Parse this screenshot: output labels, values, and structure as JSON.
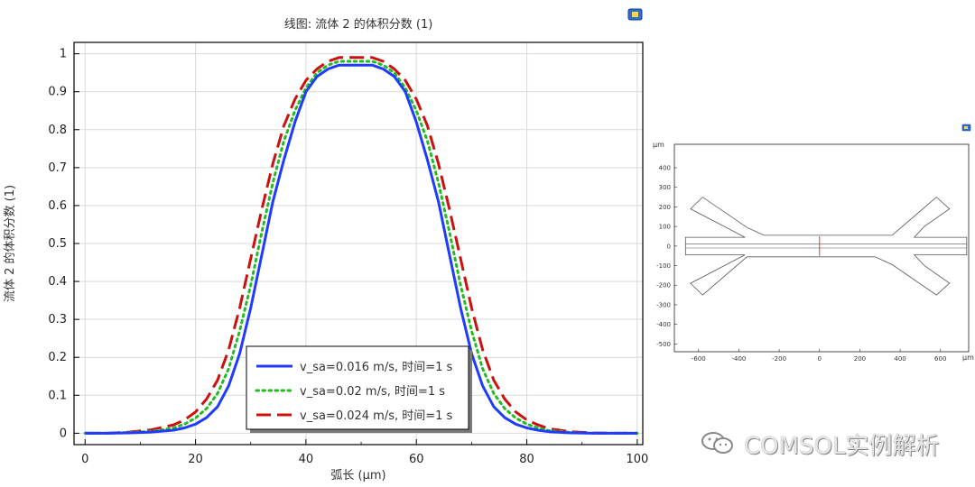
{
  "main_plot": {
    "title": "线图: 流体 2 的体积分数 (1)",
    "icon": "comsol-plot-icon"
  },
  "chart_data": [
    {
      "type": "line",
      "title": "线图: 流体 2 的体积分数 (1)",
      "xlabel": "弧长 (μm)",
      "ylabel": "流体 2 的体积分数 (1)",
      "xlim": [
        -2,
        101
      ],
      "ylim": [
        -0.03,
        1.03
      ],
      "xticks": [
        0,
        20,
        40,
        60,
        80,
        100
      ],
      "yticks": [
        0,
        0.1,
        0.2,
        0.3,
        0.4,
        0.5,
        0.6,
        0.7,
        0.8,
        0.9,
        1
      ],
      "grid": true,
      "legend_position": "bottom-center",
      "x": [
        0,
        4,
        8,
        12,
        16,
        18,
        20,
        22,
        24,
        26,
        28,
        30,
        32,
        34,
        36,
        38,
        40,
        42,
        44,
        46,
        48,
        50,
        52,
        54,
        56,
        58,
        60,
        62,
        64,
        66,
        68,
        70,
        72,
        74,
        76,
        78,
        80,
        82,
        84,
        88,
        92,
        96,
        100
      ],
      "series": [
        {
          "name": "v_sa=0.016 m/s, 时间=1 s",
          "color": "#1f3bff",
          "style": "solid",
          "values": [
            0,
            0,
            0.001,
            0.003,
            0.008,
            0.014,
            0.024,
            0.041,
            0.07,
            0.125,
            0.21,
            0.33,
            0.47,
            0.61,
            0.72,
            0.82,
            0.9,
            0.94,
            0.96,
            0.97,
            0.97,
            0.97,
            0.97,
            0.96,
            0.94,
            0.9,
            0.82,
            0.72,
            0.61,
            0.47,
            0.33,
            0.21,
            0.125,
            0.07,
            0.041,
            0.024,
            0.014,
            0.008,
            0.004,
            0.001,
            0,
            0,
            0
          ]
        },
        {
          "name": "v_sa=0.02 m/s, 时间=1 s",
          "color": "#22bb22",
          "style": "dotted",
          "values": [
            0,
            0,
            0.002,
            0.005,
            0.014,
            0.024,
            0.04,
            0.065,
            0.105,
            0.17,
            0.27,
            0.39,
            0.53,
            0.66,
            0.77,
            0.85,
            0.91,
            0.95,
            0.97,
            0.98,
            0.98,
            0.98,
            0.98,
            0.97,
            0.95,
            0.91,
            0.85,
            0.77,
            0.66,
            0.53,
            0.39,
            0.27,
            0.17,
            0.105,
            0.065,
            0.04,
            0.024,
            0.014,
            0.007,
            0.002,
            0,
            0,
            0
          ]
        },
        {
          "name": "v_sa=0.024 m/s, 时间=1 s",
          "color": "#cc1111",
          "style": "dashed",
          "values": [
            0,
            0,
            0.003,
            0.009,
            0.022,
            0.035,
            0.056,
            0.09,
            0.14,
            0.22,
            0.33,
            0.46,
            0.59,
            0.71,
            0.81,
            0.88,
            0.93,
            0.96,
            0.98,
            0.99,
            0.99,
            0.99,
            0.99,
            0.98,
            0.96,
            0.93,
            0.88,
            0.81,
            0.71,
            0.59,
            0.46,
            0.33,
            0.22,
            0.14,
            0.09,
            0.056,
            0.035,
            0.022,
            0.012,
            0.004,
            0.001,
            0,
            0
          ]
        }
      ]
    },
    {
      "type": "diagram",
      "unit_label_y": "μm",
      "unit_label_x": "μm",
      "xlim": [
        -720,
        740
      ],
      "ylim": [
        -540,
        520
      ],
      "xticks": [
        -600,
        -400,
        -200,
        0,
        200,
        400,
        600
      ],
      "yticks": [
        -500,
        -400,
        -300,
        -200,
        -100,
        0,
        100,
        200,
        300,
        400
      ],
      "geometry_color": "#555555",
      "cutline_color": "#ee3333",
      "icon": "comsol-plot-icon"
    }
  ],
  "watermark": {
    "text": "COMSOL实例解析",
    "icon": "wechat-icon"
  }
}
